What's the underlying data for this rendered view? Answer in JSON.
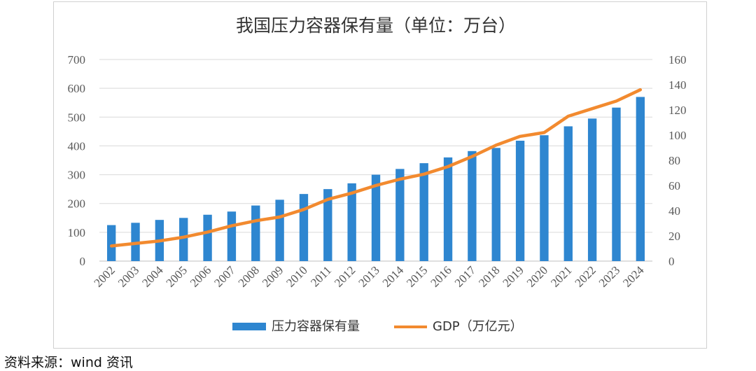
{
  "chart_data": {
    "type": "bar",
    "title": "我国压力容器保有量（单位：万台）",
    "categories": [
      "2002",
      "2003",
      "2004",
      "2005",
      "2006",
      "2007",
      "2008",
      "2009",
      "2010",
      "2011",
      "2012",
      "2013",
      "2014",
      "2015",
      "2016",
      "2017",
      "2018",
      "2019",
      "2020",
      "2021",
      "2022",
      "2023",
      "2024"
    ],
    "series": [
      {
        "name": "压力容器保有量",
        "type": "bar",
        "axis": "left",
        "color": "#2e86d0",
        "values": [
          125,
          133,
          143,
          150,
          161,
          172,
          193,
          213,
          233,
          250,
          270,
          300,
          320,
          340,
          360,
          382,
          393,
          418,
          437,
          468,
          495,
          533,
          570
        ]
      },
      {
        "name": "GDP（万亿元）",
        "type": "line",
        "axis": "right",
        "color": "#f28a2f",
        "values": [
          12,
          14,
          16,
          19,
          23,
          28,
          32,
          35,
          41,
          49,
          54,
          60,
          65,
          69,
          75,
          83,
          92,
          99,
          102,
          115,
          121,
          127,
          136
        ]
      }
    ],
    "y_left": {
      "min": 0,
      "max": 700,
      "step": 100,
      "ticks": [
        "0",
        "100",
        "200",
        "300",
        "400",
        "500",
        "600",
        "700"
      ]
    },
    "y_right": {
      "min": 0,
      "max": 160,
      "step": 20,
      "ticks": [
        "0",
        "20",
        "40",
        "60",
        "80",
        "100",
        "120",
        "140",
        "160"
      ]
    },
    "grid": true,
    "legend_position": "bottom"
  },
  "source_text": "资料来源：wind 资讯"
}
